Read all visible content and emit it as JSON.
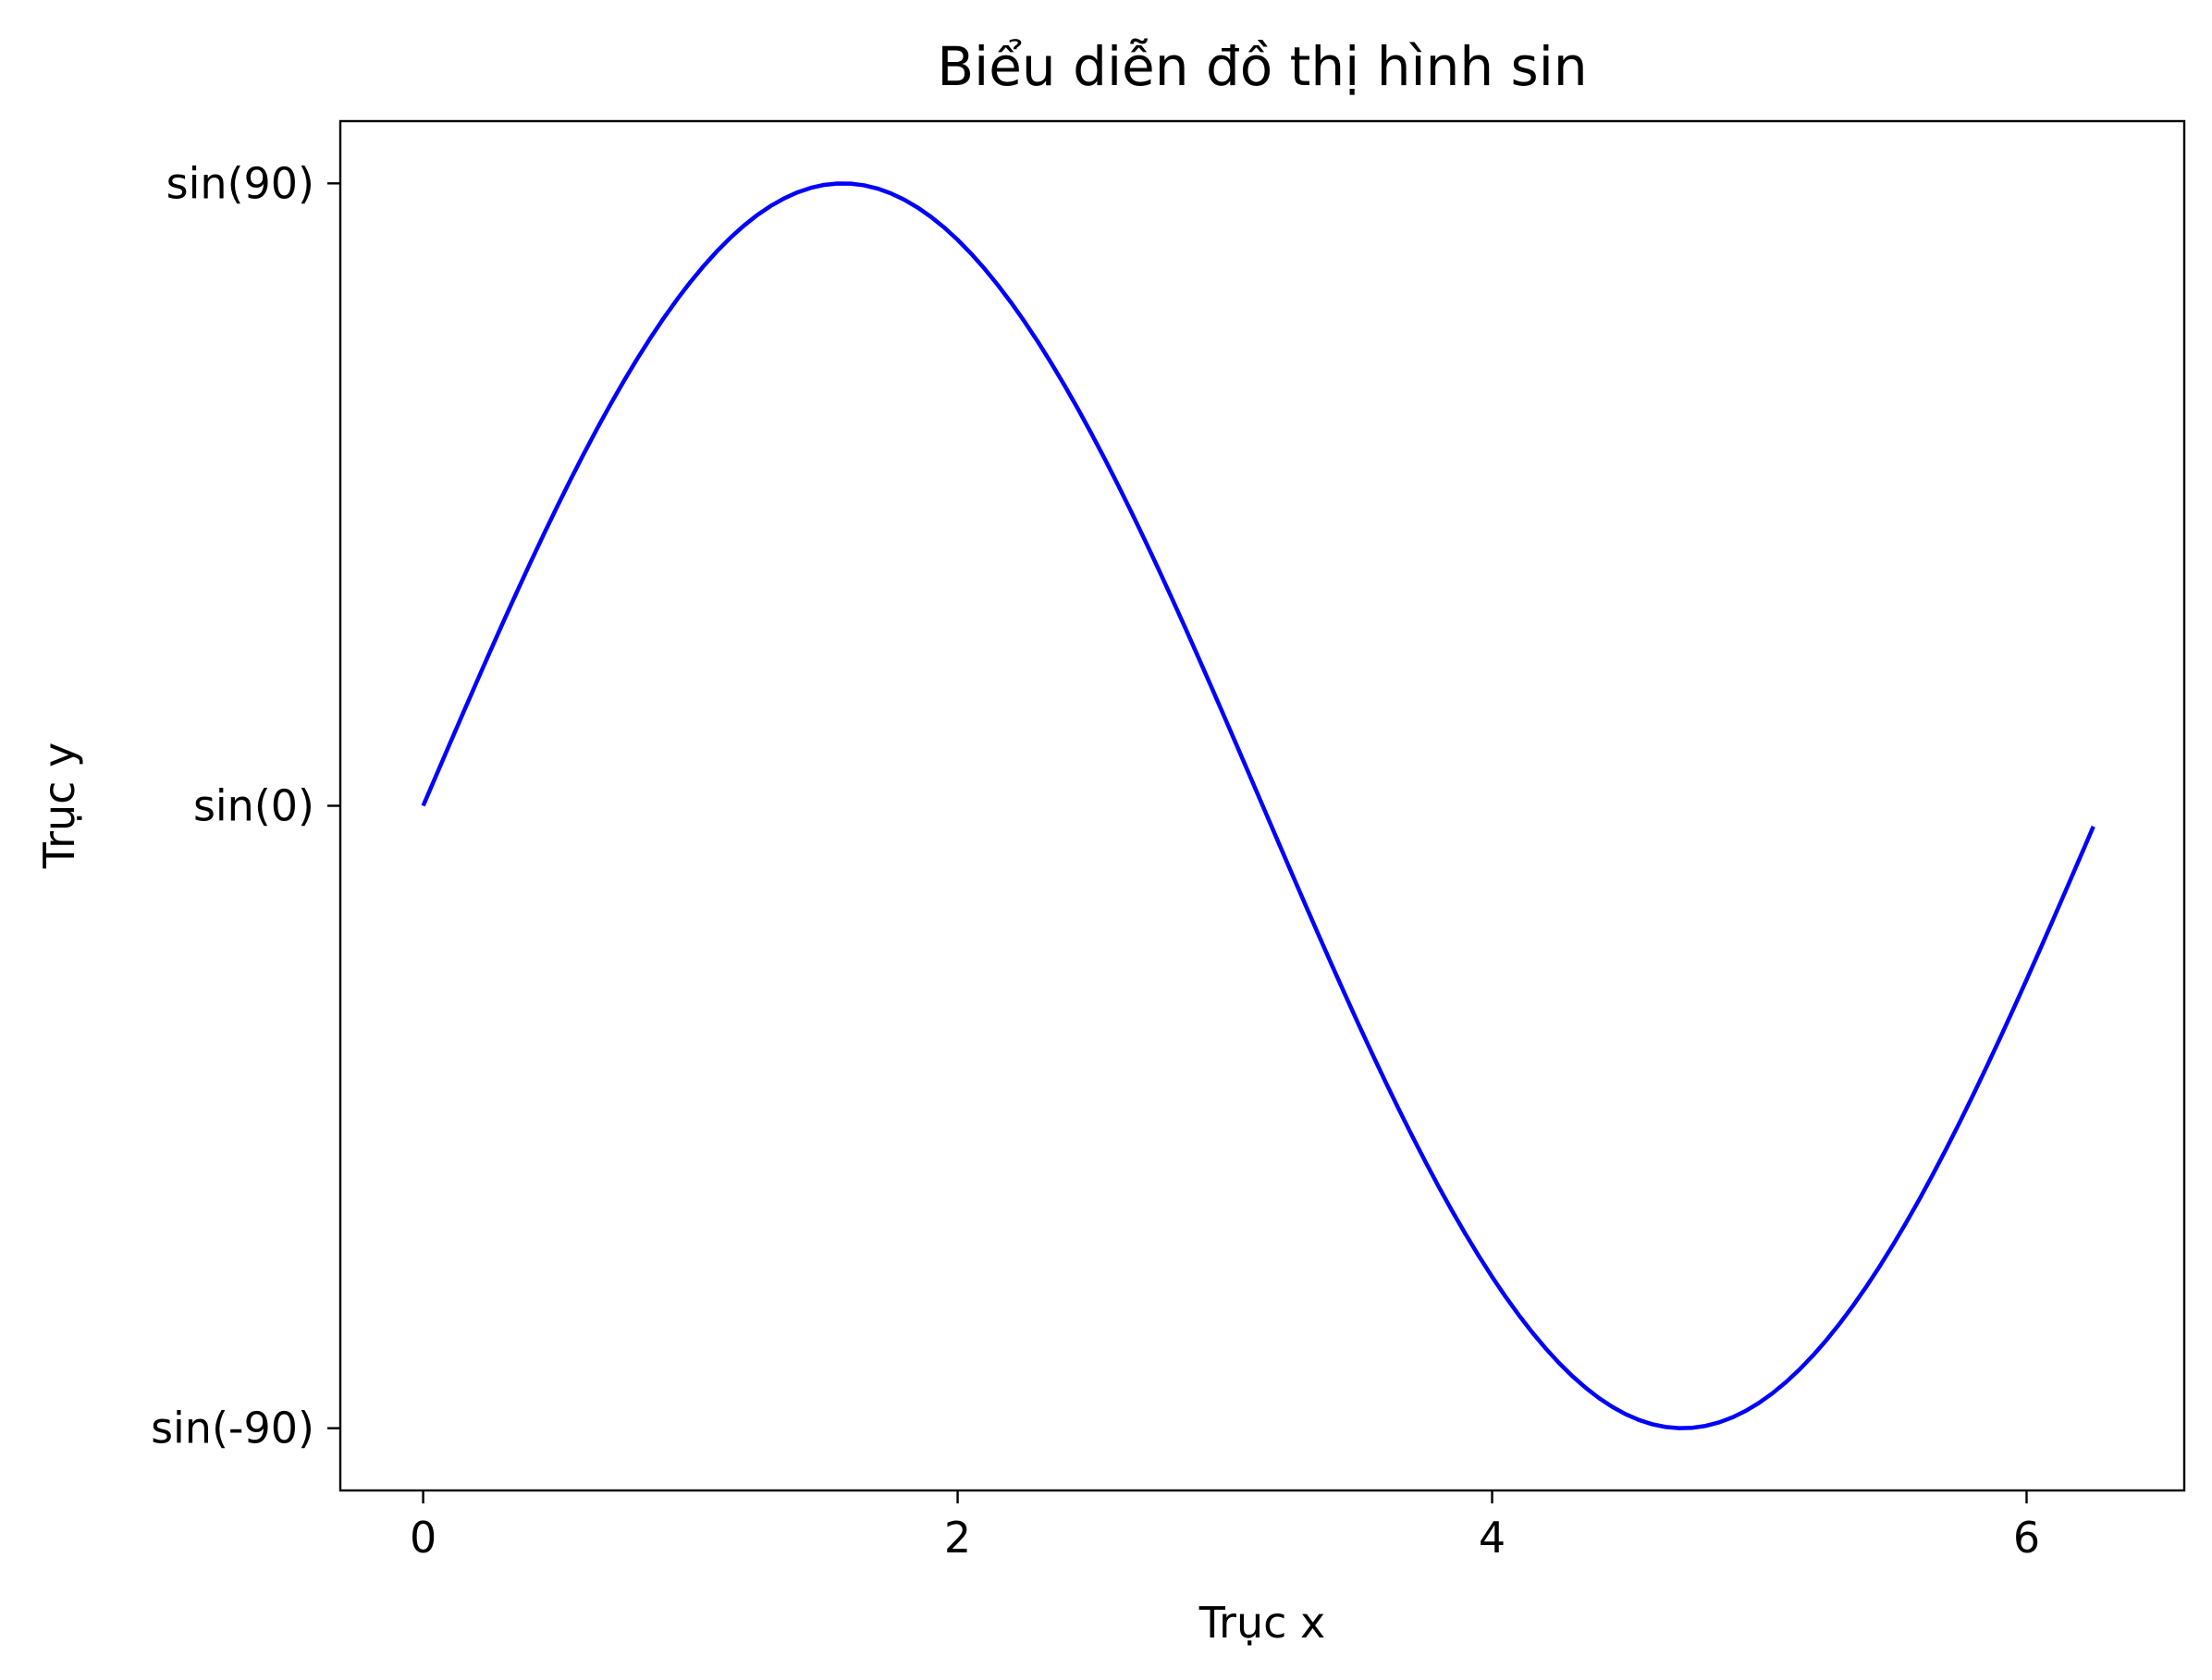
{
  "chart_data": {
    "type": "line",
    "title": "Biểu diễn đồ thị hình sin",
    "xlabel": "Trục x",
    "ylabel": "Trục y",
    "xlim": [
      -0.31,
      6.59
    ],
    "ylim": [
      -1.1,
      1.1
    ],
    "grid": false,
    "x_ticks": [
      {
        "value": 0,
        "label": "0"
      },
      {
        "value": 2,
        "label": "2"
      },
      {
        "value": 4,
        "label": "4"
      },
      {
        "value": 6,
        "label": "6"
      }
    ],
    "y_ticks": [
      {
        "value": 1,
        "label": "sin(90)"
      },
      {
        "value": 0,
        "label": "sin(0)"
      },
      {
        "value": -1,
        "label": "sin(-90)"
      }
    ],
    "series": [
      {
        "function": "sin(x)",
        "x_start": 0,
        "x_end": 6.25,
        "x_step": 0.05,
        "color": "#0000ff"
      }
    ]
  }
}
